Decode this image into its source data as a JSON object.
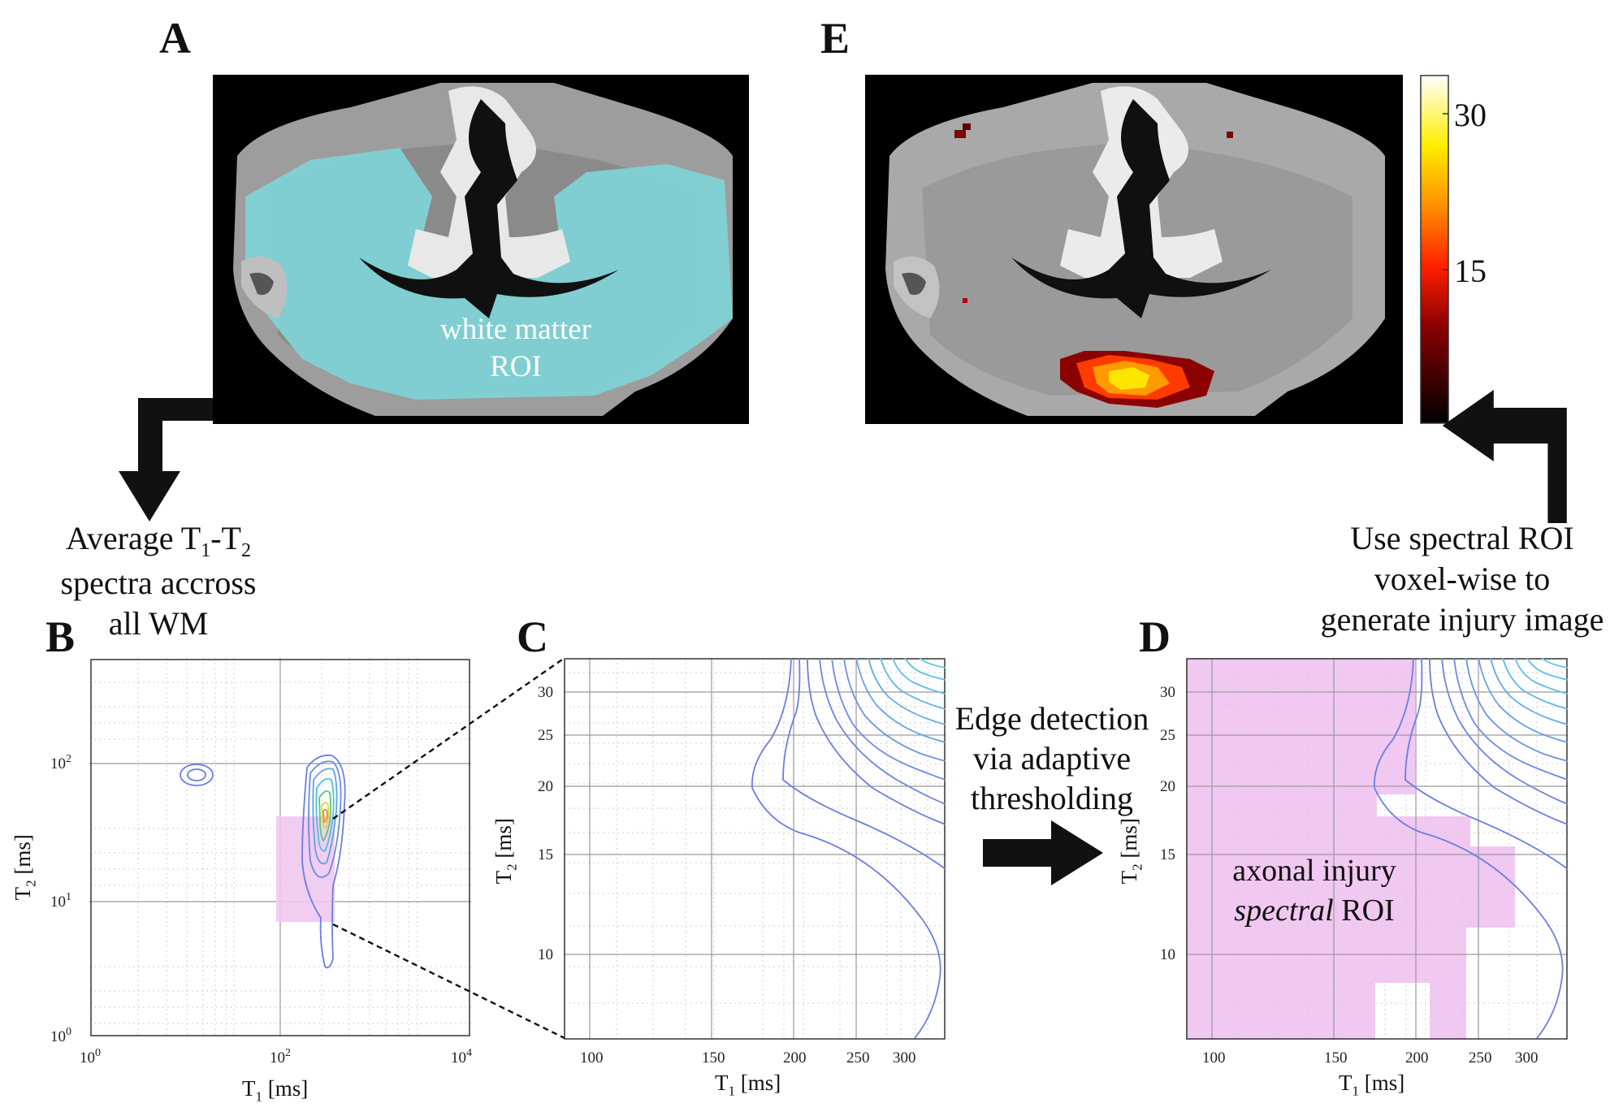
{
  "panels": {
    "a": {
      "letter": "A",
      "roi_label_line1": "white matter",
      "roi_label_line2": "ROI"
    },
    "e": {
      "letter": "E",
      "colorbar_ticks": [
        "30",
        "15"
      ]
    },
    "b": {
      "letter": "B",
      "xlabel": "T",
      "xlabel_sub": "1",
      "xlabel_unit": "[ms]",
      "ylabel": "T",
      "ylabel_sub": "2",
      "ylabel_unit": "[ms]",
      "x_ticks": [
        {
          "base": "10",
          "exp": "0"
        },
        {
          "base": "10",
          "exp": "2"
        },
        {
          "base": "10",
          "exp": "4"
        }
      ],
      "y_ticks": [
        {
          "base": "10",
          "exp": "2"
        },
        {
          "base": "10",
          "exp": "1"
        },
        {
          "base": "10",
          "exp": "0"
        }
      ]
    },
    "c": {
      "letter": "C",
      "x_ticks": [
        "100",
        "150",
        "200",
        "250",
        "300"
      ],
      "y_ticks": [
        "30",
        "25",
        "20",
        "15",
        "10"
      ],
      "xlabel": "T",
      "xlabel_sub": "1",
      "xlabel_unit": "[ms]",
      "ylabel": "T",
      "ylabel_sub": "2",
      "ylabel_unit": "[ms]"
    },
    "d": {
      "letter": "D",
      "x_ticks": [
        "100",
        "150",
        "200",
        "250",
        "300"
      ],
      "y_ticks": [
        "30",
        "25",
        "20",
        "15",
        "10"
      ],
      "xlabel": "T",
      "xlabel_sub": "1",
      "xlabel_unit": "[ms]",
      "ylabel": "T",
      "ylabel_sub": "2",
      "ylabel_unit": "[ms]",
      "roi_label_line1": "axonal injury",
      "roi_label_italic": "spectral",
      "roi_label_rest": "ROI"
    }
  },
  "captions": {
    "average": {
      "pre": "Average T",
      "sub1": "1",
      "mid": "-T",
      "sub2": "2",
      "line2": "spectra accross",
      "line3": "all WM"
    },
    "edge": {
      "line1": "Edge detection",
      "line2": "via adaptive",
      "line3": "thresholding"
    },
    "use": {
      "line1": "Use spectral ROI",
      "line2": "voxel-wise to",
      "line3": "generate injury image"
    }
  },
  "colors": {
    "roi_cyan": "#7fd3d6",
    "roi_pink": "#f1c8f1",
    "contour_blue": "#6c7fe0",
    "contour_cyan": "#63b6e6",
    "arrow": "#111111"
  }
}
